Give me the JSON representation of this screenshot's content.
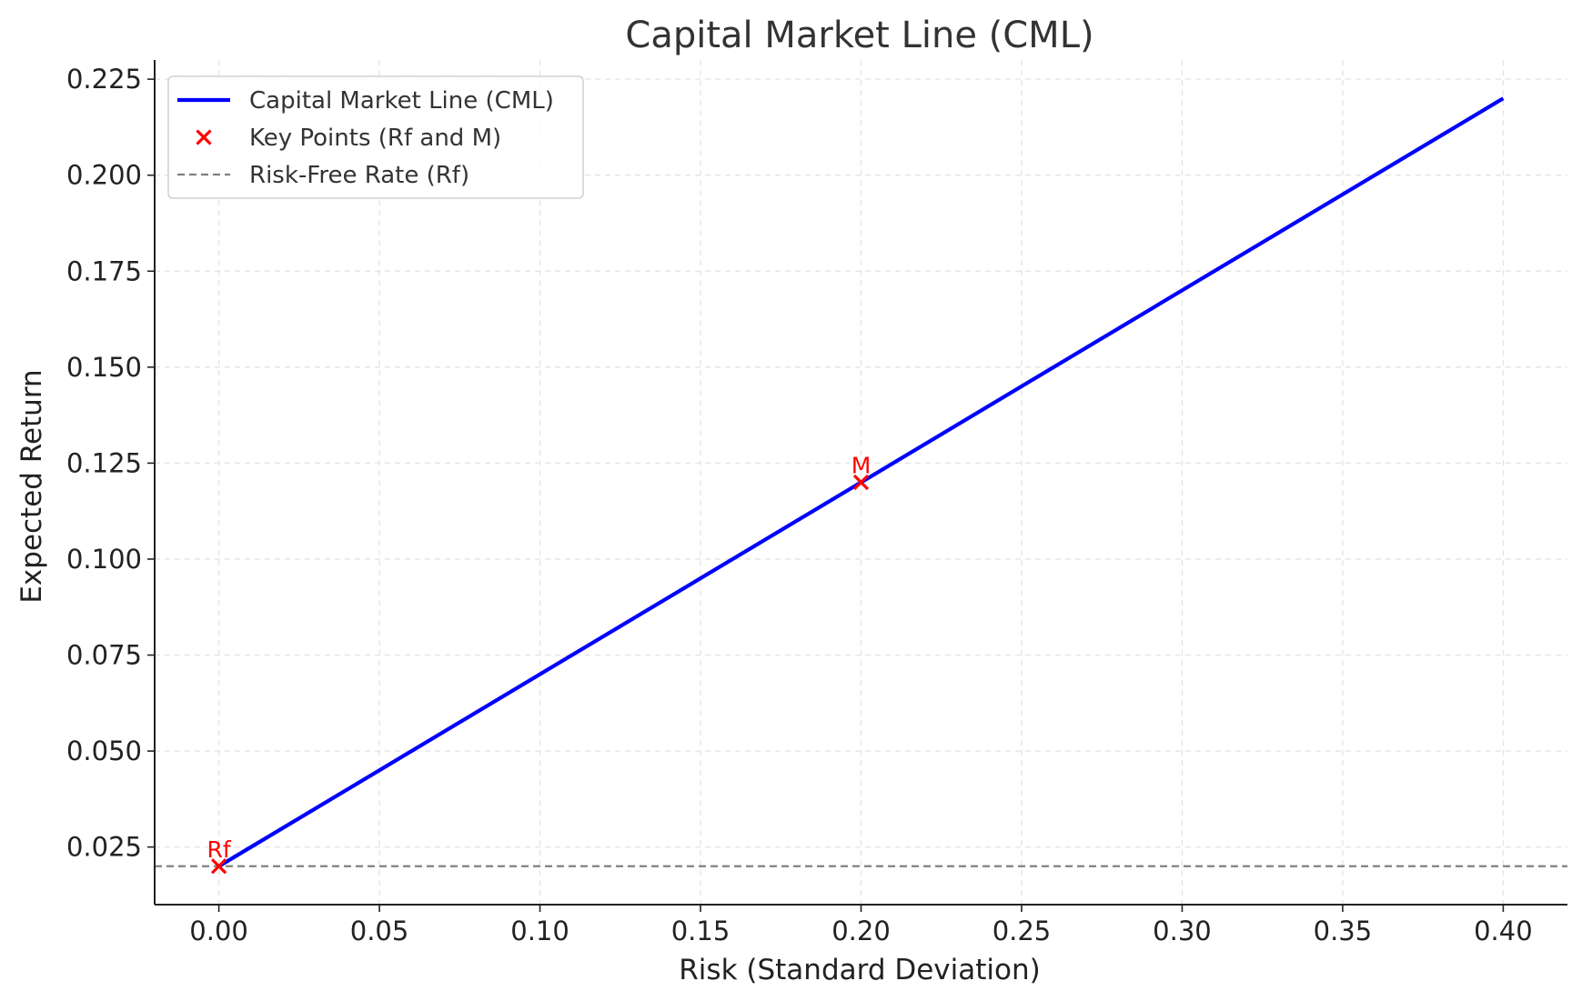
{
  "chart_data": {
    "type": "line",
    "title": "Capital Market Line (CML)",
    "xlabel": "Risk (Standard Deviation)",
    "ylabel": "Expected Return",
    "xlim": [
      -0.02,
      0.42
    ],
    "ylim": [
      0.01,
      0.23
    ],
    "xticks": [
      "0.00",
      "0.05",
      "0.10",
      "0.15",
      "0.20",
      "0.25",
      "0.30",
      "0.35",
      "0.40"
    ],
    "yticks": [
      "0.025",
      "0.050",
      "0.075",
      "0.100",
      "0.125",
      "0.150",
      "0.175",
      "0.200",
      "0.225"
    ],
    "grid": true,
    "legend_position": "top-left",
    "series": [
      {
        "name": "Capital Market Line (CML)",
        "kind": "line",
        "color": "#0000ff",
        "x": [
          0.0,
          0.4
        ],
        "y": [
          0.02,
          0.22
        ]
      },
      {
        "name": "Key Points (Rf and M)",
        "kind": "scatter",
        "marker": "x",
        "color": "#ff0000",
        "x": [
          0.0,
          0.2
        ],
        "y": [
          0.02,
          0.12
        ],
        "labels": [
          "Rf",
          "M"
        ]
      },
      {
        "name": "Risk-Free Rate (Rf)",
        "kind": "hline",
        "style": "dashed",
        "color": "#808080",
        "y": 0.02
      }
    ]
  }
}
